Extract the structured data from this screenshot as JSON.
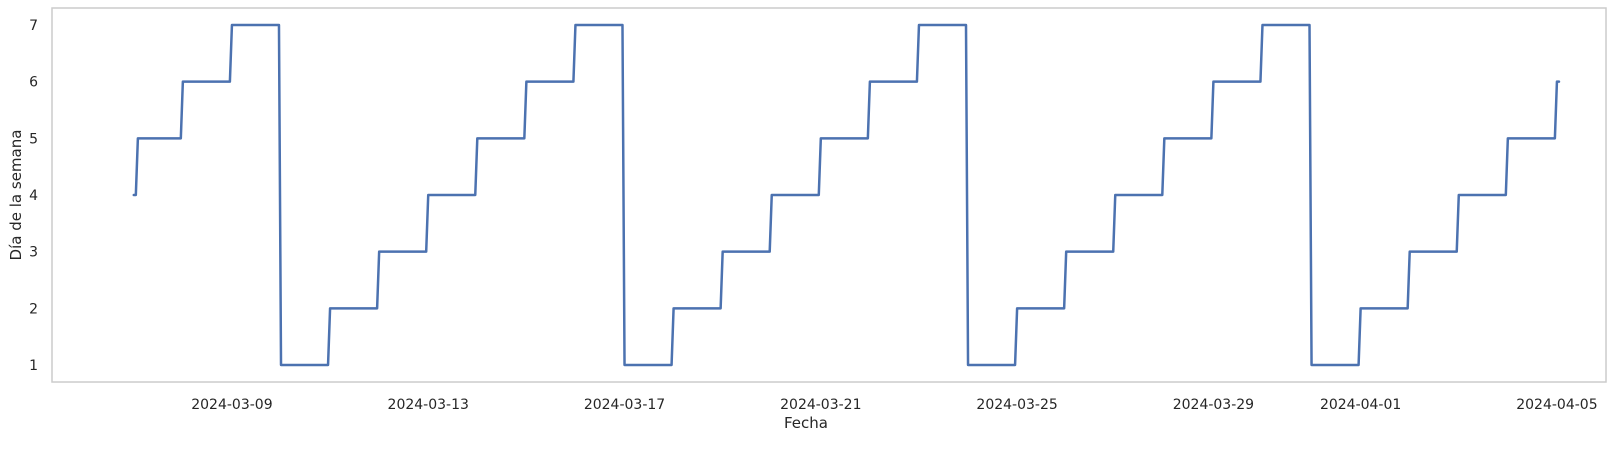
{
  "chart_data": {
    "type": "line",
    "title": "",
    "xlabel": "Fecha",
    "ylabel": "Día de la semana",
    "x_tick_labels": [
      "2024-03-09",
      "2024-03-13",
      "2024-03-17",
      "2024-03-21",
      "2024-03-25",
      "2024-03-29",
      "2024-04-01",
      "2024-04-05"
    ],
    "y_tick_labels": [
      "1",
      "2",
      "3",
      "4",
      "5",
      "6",
      "7"
    ],
    "xlim": [
      "2024-03-05 08:00",
      "2024-04-06 00:00"
    ],
    "ylim": [
      0.7,
      7.3
    ],
    "grid": false,
    "legend": "none",
    "line_color": "#4c72b0",
    "series": [
      {
        "x": [
          "2024-03-07 00:00",
          "2024-03-07 01:00",
          "2024-03-07 02:00",
          "2024-03-07 23:00",
          "2024-03-08 00:00",
          "2024-03-08 23:00",
          "2024-03-09 00:00",
          "2024-03-09 23:00",
          "2024-03-10 00:00",
          "2024-03-10 23:00",
          "2024-03-11 00:00",
          "2024-03-11 23:00",
          "2024-03-12 00:00",
          "2024-03-12 23:00",
          "2024-03-13 00:00",
          "2024-03-13 23:00",
          "2024-03-14 00:00",
          "2024-03-14 23:00",
          "2024-03-15 00:00",
          "2024-03-15 23:00",
          "2024-03-16 00:00",
          "2024-03-16 23:00",
          "2024-03-17 00:00",
          "2024-03-17 23:00",
          "2024-03-18 00:00",
          "2024-03-18 23:00",
          "2024-03-19 00:00",
          "2024-03-19 23:00",
          "2024-03-20 00:00",
          "2024-03-20 23:00",
          "2024-03-21 00:00",
          "2024-03-21 23:00",
          "2024-03-22 00:00",
          "2024-03-22 23:00",
          "2024-03-23 00:00",
          "2024-03-23 23:00",
          "2024-03-24 00:00",
          "2024-03-24 23:00",
          "2024-03-25 00:00",
          "2024-03-25 23:00",
          "2024-03-26 00:00",
          "2024-03-26 23:00",
          "2024-03-27 00:00",
          "2024-03-27 23:00",
          "2024-03-28 00:00",
          "2024-03-28 23:00",
          "2024-03-29 00:00",
          "2024-03-29 23:00",
          "2024-03-30 00:00",
          "2024-03-30 23:00",
          "2024-03-31 00:00",
          "2024-03-31 23:00",
          "2024-04-01 00:00",
          "2024-04-01 23:00",
          "2024-04-02 00:00",
          "2024-04-02 23:00",
          "2024-04-03 00:00",
          "2024-04-03 23:00",
          "2024-04-04 00:00",
          "2024-04-04 23:00",
          "2024-04-05 00:00",
          "2024-04-05 01:00"
        ],
        "y": [
          4,
          4,
          5,
          5,
          6,
          6,
          7,
          7,
          1,
          1,
          2,
          2,
          3,
          3,
          4,
          4,
          5,
          5,
          6,
          6,
          7,
          7,
          1,
          1,
          2,
          2,
          3,
          3,
          4,
          4,
          5,
          5,
          6,
          6,
          7,
          7,
          1,
          1,
          2,
          2,
          3,
          3,
          4,
          4,
          5,
          5,
          6,
          6,
          7,
          7,
          1,
          1,
          2,
          2,
          3,
          3,
          4,
          4,
          5,
          5,
          6,
          6
        ]
      }
    ]
  }
}
